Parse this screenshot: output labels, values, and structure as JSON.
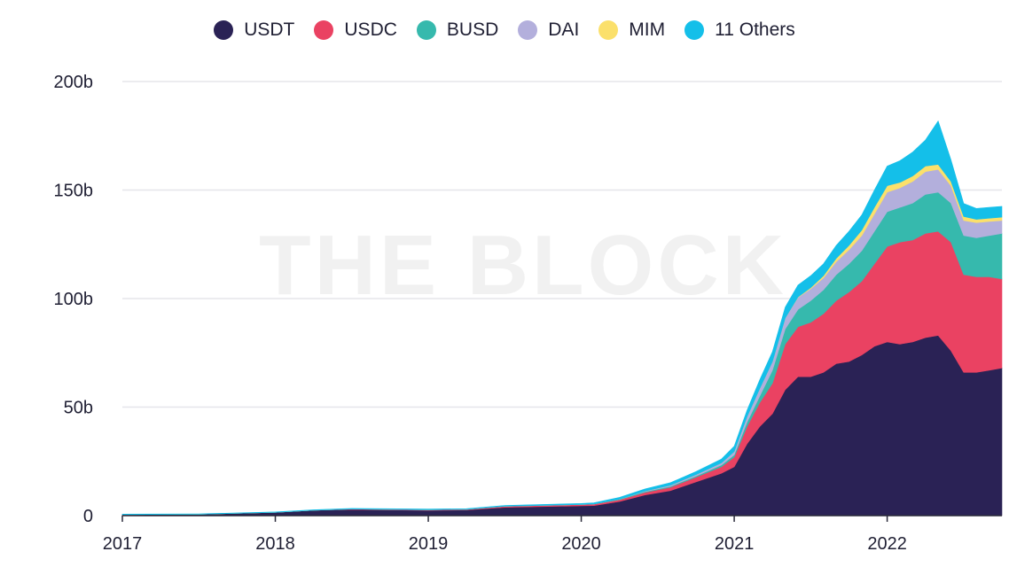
{
  "watermark": "THE BLOCK",
  "chart_data": {
    "type": "area",
    "stacked": true,
    "title": "",
    "xlabel": "",
    "ylabel": "",
    "x": [
      "2017-01",
      "2017-07",
      "2018-01",
      "2018-04",
      "2018-07",
      "2019-01",
      "2019-04",
      "2019-07",
      "2020-01",
      "2020-02",
      "2020-04",
      "2020-06",
      "2020-08",
      "2020-10",
      "2020-12",
      "2021-01",
      "2021-02",
      "2021-03",
      "2021-04",
      "2021-05",
      "2021-06",
      "2021-07",
      "2021-08",
      "2021-09",
      "2021-10",
      "2021-11",
      "2021-12",
      "2022-01",
      "2022-02",
      "2022-03",
      "2022-04",
      "2022-05",
      "2022-06",
      "2022-07",
      "2022-08",
      "2022-09",
      "2022-10"
    ],
    "series": [
      {
        "name": "USDT",
        "color": "#2a2255",
        "values": [
          0.5,
          0.6,
          1.5,
          2.5,
          2.8,
          2.4,
          2.6,
          3.8,
          4.5,
          4.6,
          6.5,
          9.5,
          11.5,
          15.5,
          19.5,
          22.5,
          33,
          41,
          47,
          58,
          64,
          64,
          66,
          70,
          71,
          74,
          78,
          80,
          79,
          80,
          82,
          83,
          76,
          66,
          66,
          67,
          68
        ]
      },
      {
        "name": "USDC",
        "color": "#ea4262",
        "values": [
          0,
          0,
          0,
          0,
          0.2,
          0.3,
          0.3,
          0.5,
          0.6,
          0.7,
          0.8,
          1.2,
          1.6,
          2.2,
          3,
          4.5,
          8,
          11,
          14,
          21,
          23,
          25,
          27,
          29,
          32,
          34,
          38,
          44,
          47,
          47,
          48,
          48,
          50,
          45,
          44,
          43,
          41
        ]
      },
      {
        "name": "BUSD",
        "color": "#36b9ad",
        "values": [
          0,
          0,
          0,
          0,
          0,
          0,
          0,
          0,
          0,
          0,
          0.2,
          0.3,
          0.4,
          0.5,
          0.8,
          1,
          2,
          3,
          6,
          7,
          8,
          10,
          11,
          12,
          13,
          14,
          15,
          16,
          16,
          17,
          18,
          18,
          18,
          18,
          18,
          19,
          21
        ]
      },
      {
        "name": "DAI",
        "color": "#b3afdc",
        "values": [
          0,
          0,
          0,
          0,
          0,
          0,
          0,
          0,
          0,
          0,
          0.1,
          0.3,
          0.5,
          0.7,
          1,
          1.5,
          2.5,
          3.5,
          4,
          5,
          5.5,
          5.5,
          5.5,
          6,
          6.5,
          7,
          8,
          9,
          9,
          10,
          10.5,
          10.5,
          8,
          7,
          7,
          6.5,
          6
        ]
      },
      {
        "name": "MIM",
        "color": "#fbe06b",
        "values": [
          0,
          0,
          0,
          0,
          0,
          0,
          0,
          0,
          0,
          0,
          0,
          0,
          0,
          0,
          0,
          0,
          0,
          0,
          0,
          0,
          0.2,
          0.5,
          1,
          1.5,
          2,
          2.5,
          3,
          3,
          2.5,
          2.5,
          2.5,
          2.3,
          2,
          1.8,
          1.5,
          1.5,
          1.5
        ]
      },
      {
        "name": "11 Others",
        "color": "#14bfe9",
        "values": [
          0.2,
          0.2,
          0.2,
          0.2,
          0.3,
          0.3,
          0.3,
          0.4,
          0.5,
          0.6,
          0.8,
          1,
          1.2,
          1.4,
          1.8,
          2.5,
          3,
          4,
          4.5,
          5,
          5.5,
          5.5,
          5.5,
          6,
          6.5,
          7,
          8,
          9,
          10,
          11,
          12,
          20,
          10,
          6,
          5,
          5,
          5
        ]
      }
    ],
    "ylim": [
      0,
      200
    ],
    "y_ticks": [
      0,
      50,
      100,
      150,
      200
    ],
    "y_tick_labels": [
      "0",
      "50b",
      "100b",
      "150b",
      "200b"
    ],
    "x_tick_labels": [
      "2017",
      "2018",
      "2019",
      "2020",
      "2021",
      "2022"
    ],
    "grid": true,
    "legend_placement": "top-center"
  }
}
